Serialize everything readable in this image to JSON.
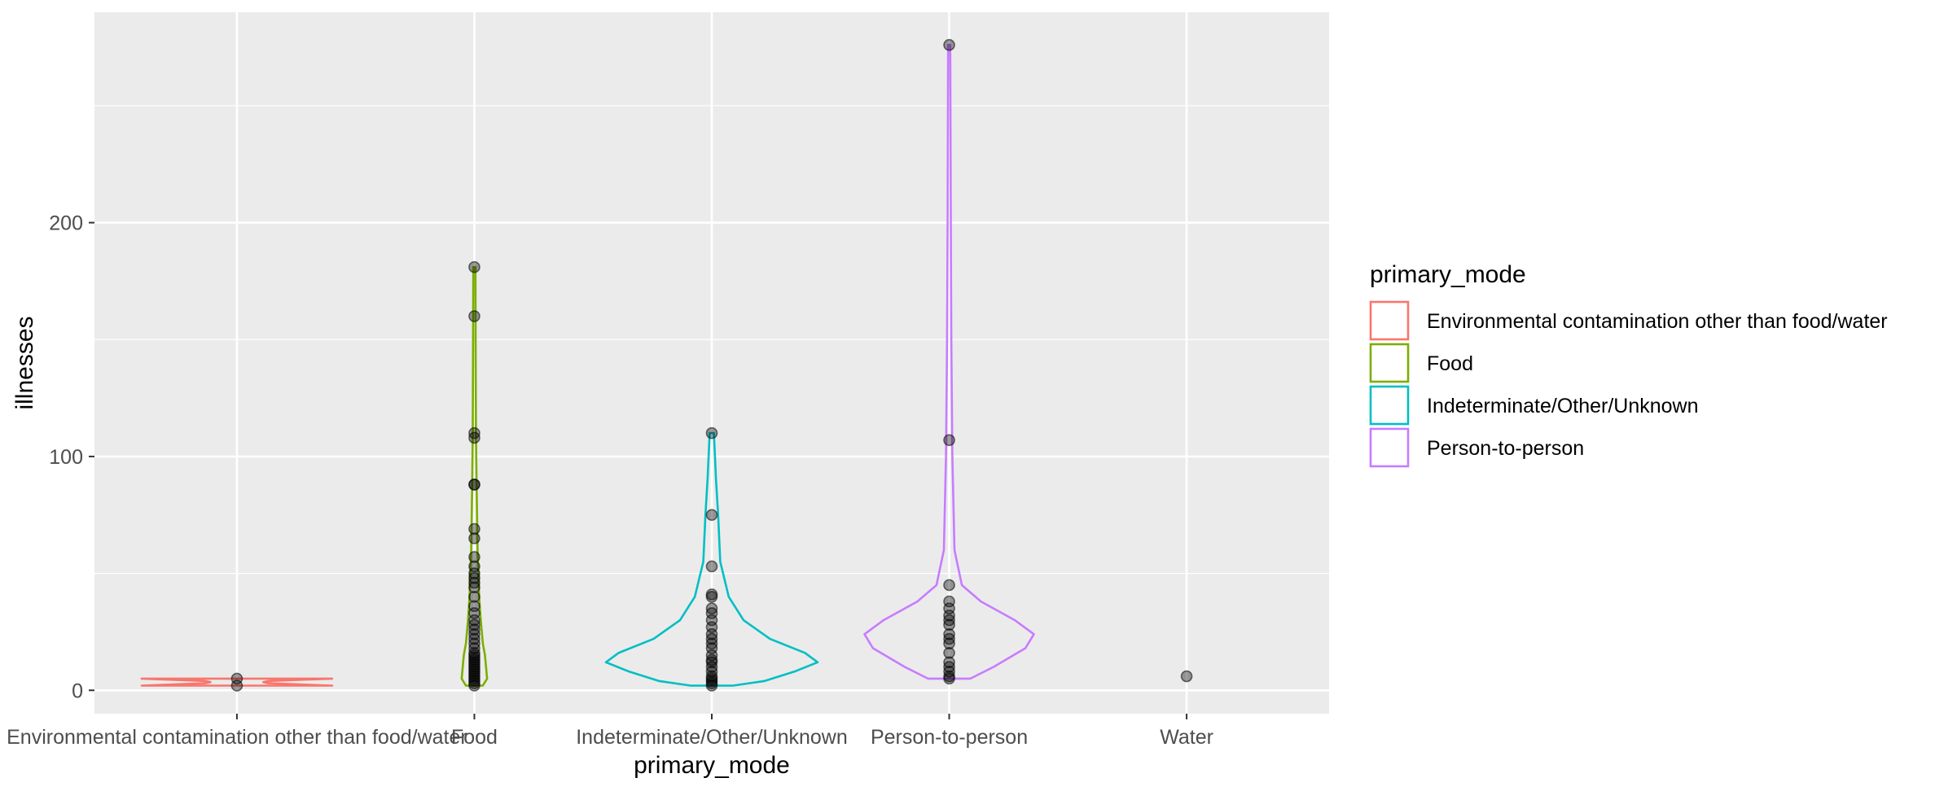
{
  "chart_data": {
    "type": "violin",
    "xlabel": "primary_mode",
    "ylabel": "illnesses",
    "ylim": [
      -10,
      290
    ],
    "yticks": [
      0,
      100,
      200
    ],
    "grid": true,
    "legend": {
      "title": "primary_mode",
      "position": "right"
    },
    "categories": [
      "Environmental contamination other than food/water",
      "Food",
      "Indeterminate/Other/Unknown",
      "Person-to-person",
      "Water"
    ],
    "colors": [
      "#F8766D",
      "#7CAE00",
      "#00BFC4",
      "#C77CFF"
    ],
    "legend_entries": [
      "Environmental contamination other than food/water",
      "Food",
      "Indeterminate/Other/Unknown",
      "Person-to-person"
    ],
    "series": [
      {
        "category": "Environmental contamination other than food/water",
        "points": [
          2,
          5
        ],
        "violin": [
          [
            2,
            0.9
          ],
          [
            3,
            0.3
          ],
          [
            3.5,
            0.25
          ],
          [
            4,
            0.3
          ],
          [
            5,
            0.9
          ]
        ]
      },
      {
        "category": "Food",
        "points": [
          2,
          3,
          4,
          5,
          6,
          7,
          8,
          9,
          10,
          11,
          12,
          13,
          14,
          15,
          16,
          18,
          20,
          22,
          24,
          26,
          28,
          30,
          33,
          36,
          40,
          44,
          46,
          48,
          50,
          53,
          57,
          65,
          69,
          88,
          88,
          108,
          110,
          160,
          181
        ],
        "violin": [
          [
            2,
            0.08
          ],
          [
            5,
            0.12
          ],
          [
            10,
            0.11
          ],
          [
            15,
            0.1
          ],
          [
            20,
            0.08
          ],
          [
            30,
            0.06
          ],
          [
            40,
            0.045
          ],
          [
            60,
            0.03
          ],
          [
            90,
            0.02
          ],
          [
            110,
            0.015
          ],
          [
            150,
            0.012
          ],
          [
            181,
            0.01
          ]
        ]
      },
      {
        "category": "Indeterminate/Other/Unknown",
        "points": [
          2,
          3,
          4,
          5,
          6,
          8,
          10,
          12,
          13,
          15,
          18,
          20,
          22,
          24,
          27,
          30,
          33,
          35,
          40,
          41,
          53,
          75,
          110
        ],
        "violin": [
          [
            2,
            0.2
          ],
          [
            4,
            0.5
          ],
          [
            8,
            0.78
          ],
          [
            12,
            1.0
          ],
          [
            16,
            0.88
          ],
          [
            22,
            0.55
          ],
          [
            30,
            0.3
          ],
          [
            40,
            0.16
          ],
          [
            55,
            0.08
          ],
          [
            75,
            0.06
          ],
          [
            90,
            0.04
          ],
          [
            110,
            0.02
          ]
        ]
      },
      {
        "category": "Person-to-person",
        "points": [
          5,
          6,
          8,
          10,
          12,
          16,
          20,
          22,
          24,
          28,
          30,
          32,
          35,
          38,
          45,
          107,
          276
        ],
        "violin": [
          [
            5,
            0.2
          ],
          [
            10,
            0.42
          ],
          [
            18,
            0.72
          ],
          [
            24,
            0.8
          ],
          [
            30,
            0.62
          ],
          [
            38,
            0.3
          ],
          [
            45,
            0.12
          ],
          [
            60,
            0.05
          ],
          [
            100,
            0.03
          ],
          [
            150,
            0.02
          ],
          [
            200,
            0.015
          ],
          [
            276,
            0.01
          ]
        ]
      },
      {
        "category": "Water",
        "points": [
          6
        ],
        "violin": []
      }
    ]
  }
}
